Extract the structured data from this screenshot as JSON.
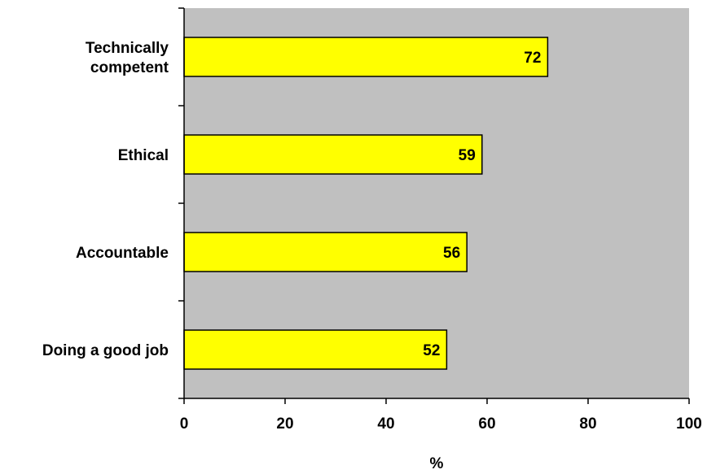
{
  "chart_data": {
    "type": "bar",
    "orientation": "horizontal",
    "categories": [
      [
        "Technically",
        "competent"
      ],
      [
        "Ethical"
      ],
      [
        "Accountable"
      ],
      [
        "Doing a good job"
      ]
    ],
    "values": [
      72,
      59,
      56,
      52
    ],
    "data_labels": [
      "72",
      "59",
      "56",
      "52"
    ],
    "title": "",
    "xlabel": "%",
    "ylabel": "",
    "xlim": [
      0,
      100
    ],
    "x_ticks": [
      "0",
      "20",
      "40",
      "60",
      "80",
      "100"
    ],
    "grid": false,
    "legend": "none",
    "colors": {
      "bar_fill": "#ffff00",
      "bar_stroke": "#000000",
      "plot_background": "#c0c0c0",
      "axis": "#000000"
    }
  }
}
